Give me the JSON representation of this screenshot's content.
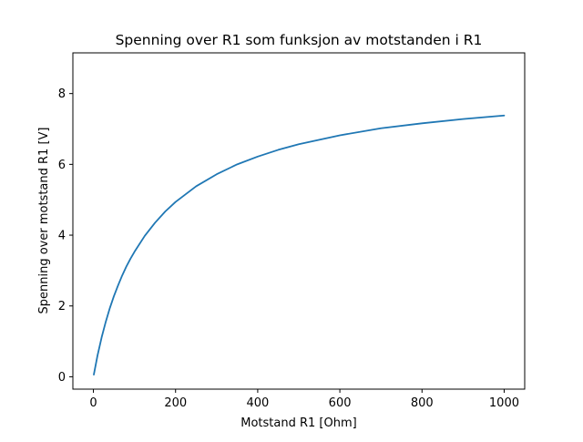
{
  "chart_data": {
    "type": "line",
    "title": "Spenning over R1 som funksjon av motstanden i R1",
    "xlabel": "Motstand R1 [Ohm]",
    "ylabel": "Spenning over motstand R1 [V]",
    "xlim": [
      -50,
      1050
    ],
    "ylim": [
      -0.35,
      9.15
    ],
    "xticks": [
      0,
      200,
      400,
      600,
      800,
      1000
    ],
    "yticks": [
      0,
      2,
      4,
      6,
      8
    ],
    "xtick_labels": [
      "0",
      "200",
      "400",
      "600",
      "800",
      "1000"
    ],
    "ytick_labels": [
      "0",
      "2",
      "4",
      "6",
      "8"
    ],
    "grid": false,
    "line_color": "#1f77b4",
    "series": [
      {
        "x": [
          1,
          10,
          20,
          30,
          40,
          50,
          60,
          70,
          80,
          90,
          100,
          125,
          150,
          175,
          200,
          250,
          300,
          350,
          400,
          450,
          500,
          600,
          700,
          800,
          900,
          1000
        ],
        "values": [
          0.06,
          0.6,
          1.11,
          1.55,
          1.94,
          2.28,
          2.58,
          2.86,
          3.11,
          3.33,
          3.53,
          3.98,
          4.35,
          4.67,
          4.94,
          5.38,
          5.72,
          6.0,
          6.22,
          6.41,
          6.57,
          6.82,
          7.02,
          7.16,
          7.28,
          7.38
        ]
      }
    ]
  }
}
